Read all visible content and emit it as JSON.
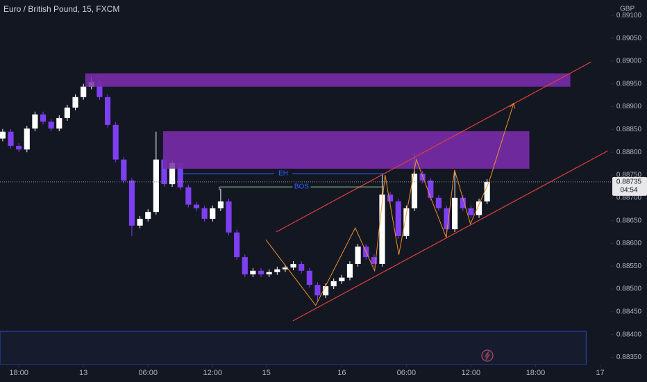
{
  "chart_data": {
    "type": "candlestick",
    "title": "Euro / British Pound, 15, FXCM",
    "currency": "GBP",
    "x": [
      -6,
      -3,
      0,
      3,
      6,
      9,
      12,
      15,
      18,
      21,
      24,
      27,
      30,
      33,
      36,
      39,
      42,
      45,
      48,
      51,
      54,
      57,
      60,
      63,
      66,
      69,
      72,
      75,
      78,
      81,
      84,
      87,
      90,
      93,
      96,
      99,
      102,
      105,
      108,
      111,
      114,
      117,
      120,
      123,
      126,
      129,
      132,
      135,
      138,
      141,
      144,
      147,
      150,
      153,
      156,
      159,
      162,
      165,
      168,
      171,
      174
    ],
    "open": [
      0.8883,
      0.88845,
      0.88814,
      0.88806,
      0.88852,
      0.88883,
      0.88867,
      0.88852,
      0.88875,
      0.88898,
      0.88921,
      0.88944,
      0.88954,
      0.88921,
      0.8886,
      0.88784,
      0.88738,
      0.88639,
      0.88654,
      0.88669,
      0.88784,
      0.8873,
      0.88776,
      0.88723,
      0.88685,
      0.88677,
      0.88654,
      0.88677,
      0.88692,
      0.88624,
      0.8857,
      0.88532,
      0.8854,
      0.88532,
      0.88537,
      0.88543,
      0.88547,
      0.88555,
      0.8854,
      0.88509,
      0.88486,
      0.88506,
      0.88517,
      0.88525,
      0.88555,
      0.88593,
      0.8857,
      0.88555,
      0.88707,
      0.88692,
      0.88616,
      0.88677,
      0.88753,
      0.88738,
      0.887,
      0.88677,
      0.88631,
      0.887,
      0.88677,
      0.88662,
      0.88692
    ],
    "high": [
      0.88851,
      0.88851,
      0.8882,
      0.88858,
      0.88889,
      0.88889,
      0.88873,
      0.88881,
      0.88904,
      0.88927,
      0.8895,
      0.88965,
      0.8896,
      0.88927,
      0.88866,
      0.8879,
      0.88744,
      0.8866,
      0.88675,
      0.88845,
      0.8879,
      0.88782,
      0.88782,
      0.88729,
      0.88691,
      0.88683,
      0.88683,
      0.8872,
      0.88698,
      0.8863,
      0.88576,
      0.88546,
      0.88546,
      0.88543,
      0.88549,
      0.88553,
      0.88561,
      0.88561,
      0.88546,
      0.88515,
      0.88512,
      0.88523,
      0.88531,
      0.88561,
      0.88599,
      0.88599,
      0.88576,
      0.88753,
      0.88713,
      0.88698,
      0.88683,
      0.88798,
      0.88759,
      0.88744,
      0.88706,
      0.88683,
      0.88756,
      0.88706,
      0.88683,
      0.88698,
      0.88741
    ],
    "low": [
      0.88824,
      0.88808,
      0.888,
      0.888,
      0.88846,
      0.88861,
      0.88846,
      0.88846,
      0.88869,
      0.88892,
      0.88915,
      0.88938,
      0.88915,
      0.88854,
      0.88778,
      0.88732,
      0.88616,
      0.88633,
      0.88648,
      0.88663,
      0.88724,
      0.88724,
      0.88717,
      0.88679,
      0.88671,
      0.88648,
      0.88648,
      0.88671,
      0.88618,
      0.88564,
      0.88526,
      0.88526,
      0.88526,
      0.88526,
      0.88531,
      0.88537,
      0.88541,
      0.88534,
      0.88503,
      0.88473,
      0.8848,
      0.885,
      0.88511,
      0.88519,
      0.88549,
      0.88564,
      0.88549,
      0.88549,
      0.88686,
      0.8861,
      0.8861,
      0.88671,
      0.88732,
      0.88694,
      0.88671,
      0.88615,
      0.88625,
      0.88671,
      0.88656,
      0.88656,
      0.88686
    ],
    "close": [
      0.88845,
      0.88814,
      0.88806,
      0.88852,
      0.88883,
      0.88867,
      0.88852,
      0.88875,
      0.88898,
      0.88921,
      0.88944,
      0.88954,
      0.88921,
      0.8886,
      0.88784,
      0.88738,
      0.88639,
      0.88654,
      0.88669,
      0.88784,
      0.8873,
      0.88776,
      0.88723,
      0.88685,
      0.88677,
      0.88654,
      0.88677,
      0.88692,
      0.88624,
      0.8857,
      0.88532,
      0.8854,
      0.88532,
      0.88537,
      0.88543,
      0.88547,
      0.88555,
      0.8854,
      0.88509,
      0.88486,
      0.88506,
      0.88517,
      0.88525,
      0.88555,
      0.88593,
      0.8857,
      0.88555,
      0.88707,
      0.88692,
      0.88616,
      0.88677,
      0.88753,
      0.88738,
      0.887,
      0.88677,
      0.88631,
      0.887,
      0.88677,
      0.88662,
      0.88692,
      0.88735
    ],
    "up_color": "#ffffff",
    "down_color": "#7e3ff2",
    "xlim": [
      -7,
      220
    ],
    "ylim": [
      0.88334,
      0.89134
    ],
    "xticks": [
      {
        "value": 0,
        "label": "18:00"
      },
      {
        "value": 24,
        "label": "13"
      },
      {
        "value": 48,
        "label": "06:00"
      },
      {
        "value": 72,
        "label": "12:00"
      },
      {
        "value": 92,
        "label": "15"
      },
      {
        "value": 120,
        "label": "16"
      },
      {
        "value": 144,
        "label": "06:00"
      },
      {
        "value": 168,
        "label": "12:00"
      },
      {
        "value": 192,
        "label": "18:00"
      },
      {
        "value": 216,
        "label": "17"
      }
    ],
    "yticks": [
      {
        "value": 0.8835,
        "label": "0.88350"
      },
      {
        "value": 0.884,
        "label": "0.88400"
      },
      {
        "value": 0.8845,
        "label": "0.88450"
      },
      {
        "value": 0.885,
        "label": "0.88500"
      },
      {
        "value": 0.8855,
        "label": "0.88550"
      },
      {
        "value": 0.886,
        "label": "0.88600"
      },
      {
        "value": 0.8865,
        "label": "0.88650"
      },
      {
        "value": 0.887,
        "label": "0.88700"
      },
      {
        "value": 0.8875,
        "label": "0.88750"
      },
      {
        "value": 0.888,
        "label": "0.88800"
      },
      {
        "value": 0.8885,
        "label": "0.88850"
      },
      {
        "value": 0.889,
        "label": "0.88900"
      },
      {
        "value": 0.8895,
        "label": "0.88950"
      },
      {
        "value": 0.89,
        "label": "0.89000"
      },
      {
        "value": 0.8905,
        "label": "0.89050"
      },
      {
        "value": 0.891,
        "label": "0.89100"
      }
    ],
    "last_price": {
      "value": 0.88735,
      "label": "0.88735"
    },
    "countdown": "04:54",
    "zones": [
      {
        "x": [
          24.7,
          204.9
        ],
        "y": [
          0.88944,
          0.88973
        ],
        "color": "#6e2a9c"
      },
      {
        "x": [
          53.6,
          189.7
        ],
        "y": [
          0.88764,
          0.88846
        ],
        "color": "#6e2a9c"
      },
      {
        "x": [
          -7,
          210.8
        ],
        "y": [
          0.88334,
          0.88407
        ],
        "color": "#161b2e"
      }
    ],
    "lines": [
      {
        "x": [
          95.6,
          212.6
        ],
        "y": [
          0.88625,
          0.88998
        ],
        "color": "#e0403a"
      },
      {
        "x": [
          101.8,
          218.8
        ],
        "y": [
          0.8843,
          0.88803
        ],
        "color": "#e0403a"
      }
    ],
    "zigzag": {
      "x": [
        91.8,
        110.3,
        125,
        132.2,
        136.1,
        141.2,
        147.7,
        152.8,
        158.8,
        161.9,
        167.8,
        174.7,
        183.8
      ],
      "y": [
        0.88608,
        0.88464,
        0.88634,
        0.8854,
        0.8875,
        0.88575,
        0.88784,
        0.88704,
        0.88613,
        0.88761,
        0.88643,
        0.88735,
        0.88906
      ],
      "color": "#f0902a"
    },
    "levels": [
      {
        "label": "EH",
        "x": [
          60.4,
          136.1
        ],
        "y": 0.88753,
        "color": "#2962ff"
      },
      {
        "label": "BOS",
        "x": [
          74.5,
          135.6
        ],
        "y": 0.88724,
        "color": "#8fc79a"
      }
    ]
  }
}
